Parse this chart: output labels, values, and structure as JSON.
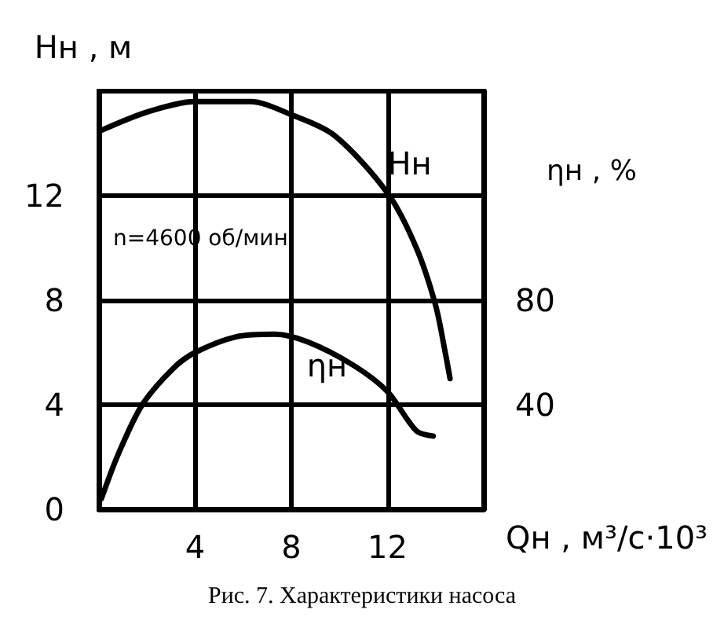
{
  "chart_data": {
    "type": "line",
    "xlabel": "Qн , м³/с·10³",
    "ylabel": "Hн , м",
    "y2label": "ηн , %",
    "xlim": [
      0,
      16
    ],
    "xticks": [
      4,
      8,
      12
    ],
    "ylim": [
      0,
      16
    ],
    "yticks": [
      0,
      4,
      8,
      12
    ],
    "y2lim": [
      0,
      160
    ],
    "y2ticks": [
      40,
      80
    ],
    "grid": true,
    "legend": false,
    "marker": "none",
    "line_style": "solid",
    "series": [
      {
        "name": "Hн",
        "color": "#000000",
        "x": [
          0.1,
          2,
          4,
          6.3,
          8,
          9.8,
          12,
          13.2,
          14,
          14.4,
          14.6
        ],
        "values": [
          14.5,
          15.2,
          15.6,
          15.6,
          15.1,
          14.3,
          12.1,
          10,
          7.8,
          6,
          5
        ]
      },
      {
        "name": "ηн",
        "color": "#000000",
        "axis": "y2",
        "x": [
          0.1,
          0.8,
          1.8,
          3.1,
          4,
          5.7,
          7.3,
          8.7,
          10.6,
          12,
          13.2,
          13.9
        ],
        "values": [
          4,
          21,
          40,
          54,
          60,
          66,
          67,
          64,
          55,
          45,
          30,
          28
        ]
      }
    ],
    "annotations": [
      "n=4600 об/мин",
      "Рис. 7. Характеристики насоса"
    ]
  }
}
